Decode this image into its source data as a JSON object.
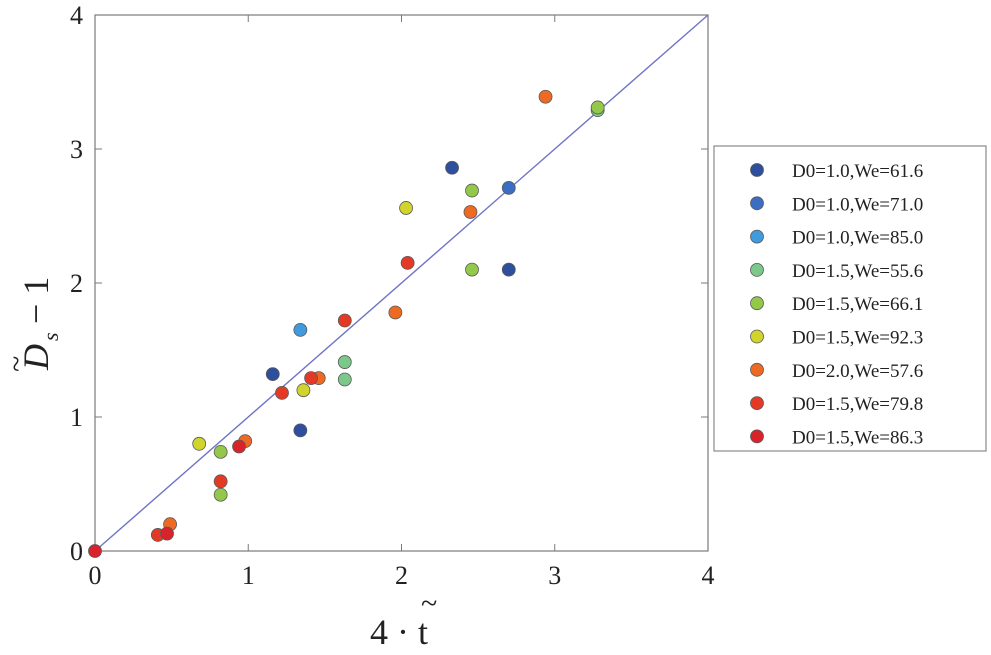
{
  "chart_data": {
    "type": "scatter",
    "xlabel": "4 · t",
    "ylabel": "D",
    "ylabel_subscript": "s",
    "ylabel_suffix": " − 1",
    "xlim": [
      0,
      4
    ],
    "ylim": [
      0,
      4
    ],
    "xticks": [
      "0",
      "1",
      "2",
      "3",
      "4"
    ],
    "yticks": [
      "0",
      "1",
      "2",
      "3",
      "4"
    ],
    "reference_line": [
      [
        0,
        0
      ],
      [
        4,
        4
      ]
    ],
    "reference_line_color": "#6f74c4",
    "legend_position": "right",
    "series": [
      {
        "name": "D0=1.0,We=61.6",
        "color": "#2e4e9e",
        "points": [
          [
            1.16,
            1.32
          ],
          [
            2.33,
            2.86
          ],
          [
            1.34,
            0.9
          ],
          [
            2.7,
            2.1
          ]
        ]
      },
      {
        "name": "D0=1.0,We=71.0",
        "color": "#3b6dc3",
        "points": [
          [
            2.7,
            2.71
          ]
        ]
      },
      {
        "name": "D0=1.0,We=85.0",
        "color": "#3f9ade",
        "points": [
          [
            1.34,
            1.65
          ]
        ]
      },
      {
        "name": "D0=1.5,We=55.6",
        "color": "#7cc88a",
        "points": [
          [
            1.63,
            1.41
          ],
          [
            1.63,
            1.28
          ],
          [
            3.28,
            3.29
          ]
        ]
      },
      {
        "name": "D0=1.5,We=66.1",
        "color": "#94c84a",
        "points": [
          [
            0.82,
            0.74
          ],
          [
            0.82,
            0.42
          ],
          [
            2.46,
            2.69
          ],
          [
            2.46,
            2.1
          ],
          [
            3.28,
            3.31
          ]
        ]
      },
      {
        "name": "D0=1.5,We=92.3",
        "color": "#d1d42a",
        "points": [
          [
            0.68,
            0.8
          ],
          [
            1.36,
            1.2
          ],
          [
            2.03,
            2.56
          ]
        ]
      },
      {
        "name": "D0=2.0,We=57.6",
        "color": "#ee6a22",
        "points": [
          [
            0.49,
            0.2
          ],
          [
            0.98,
            0.82
          ],
          [
            1.46,
            1.29
          ],
          [
            1.96,
            1.78
          ],
          [
            2.45,
            2.53
          ],
          [
            2.94,
            3.39
          ]
        ]
      },
      {
        "name": "D0=1.5,We=79.8",
        "color": "#e43a25",
        "points": [
          [
            0.41,
            0.12
          ],
          [
            0.82,
            0.52
          ],
          [
            1.22,
            1.18
          ],
          [
            1.41,
            1.29
          ],
          [
            2.04,
            2.15
          ],
          [
            1.63,
            1.72
          ]
        ]
      },
      {
        "name": "D0=1.5,We=86.3",
        "color": "#d8232a",
        "points": [
          [
            0.0,
            0.0
          ],
          [
            0.47,
            0.13
          ],
          [
            0.94,
            0.78
          ]
        ]
      }
    ]
  }
}
